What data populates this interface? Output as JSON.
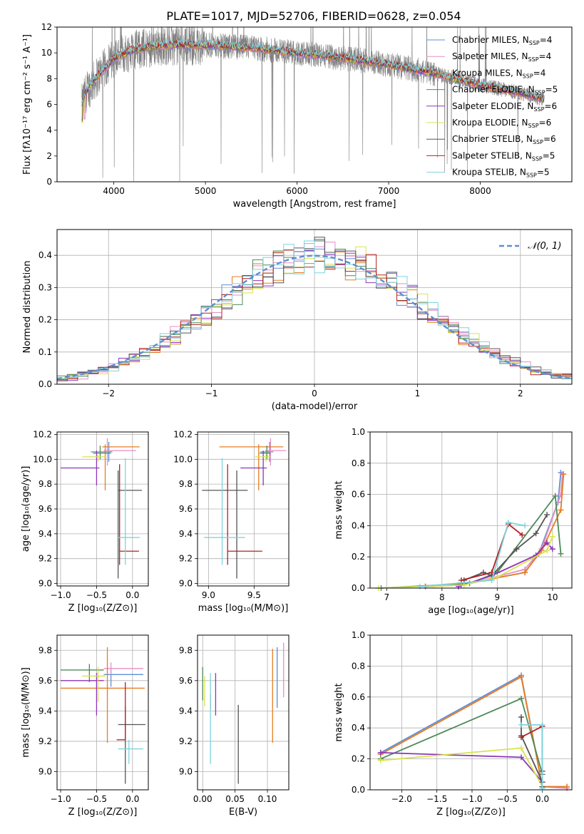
{
  "figure": {
    "title": "PLATE=1017, MJD=52706, FIBERID=0628, z=0.054"
  },
  "palette": {
    "Chabrier MILES": "#5f8fd6",
    "Salpeter MILES": "#e88ec3",
    "Kroupa MILES": "#e67e22",
    "Chabrier ELODIE": "#4e8a5a",
    "Salpeter ELODIE": "#8e35b8",
    "Kroupa ELODIE": "#d7e34a",
    "Chabrier STELIB": "#555555",
    "Salpeter STELIB": "#b22222",
    "Kroupa STELIB": "#7fd3dc",
    "data": "#7f7f7f",
    "normal": "#5b8fd6"
  },
  "chart_data": [
    {
      "id": "spectrum",
      "type": "line",
      "xlabel": "wavelength [Angstrom, rest frame]",
      "ylabel": "Flux [fλ10⁻¹⁷ erg cm⁻² s⁻¹ A⁻¹]",
      "xlim": [
        3380,
        9000
      ],
      "ylim": [
        0,
        12
      ],
      "grid": false,
      "legend": "top-right",
      "xticks": [
        4000,
        5000,
        6000,
        7000,
        8000
      ],
      "yticks": [
        0,
        2,
        4,
        6,
        8,
        10,
        12
      ],
      "continuum": {
        "x": [
          3650,
          3700,
          3800,
          4000,
          4200,
          4500,
          5000,
          5500,
          6000,
          6500,
          7000,
          7500,
          8000,
          8500,
          8700
        ],
        "y": [
          6.0,
          7.0,
          8.0,
          9.6,
          10.2,
          10.6,
          10.6,
          10.4,
          10.0,
          9.6,
          9.1,
          8.4,
          7.5,
          6.8,
          6.4
        ]
      },
      "series": [
        {
          "name": "Chabrier MILES, N",
          "sub": "SSP",
          "suffix": "=4"
        },
        {
          "name": "Salpeter MILES, N",
          "sub": "SSP",
          "suffix": "=4"
        },
        {
          "name": "Kroupa MILES, N",
          "sub": "SSP",
          "suffix": "=4"
        },
        {
          "name": "Chabrier ELODIE, N",
          "sub": "SSP",
          "suffix": "=5"
        },
        {
          "name": "Salpeter ELODIE, N",
          "sub": "SSP",
          "suffix": "=6"
        },
        {
          "name": "Kroupa ELODIE, N",
          "sub": "SSP",
          "suffix": "=6"
        },
        {
          "name": "Chabrier STELIB, N",
          "sub": "SSP",
          "suffix": "=6"
        },
        {
          "name": "Salpeter STELIB, N",
          "sub": "SSP",
          "suffix": "=5"
        },
        {
          "name": "Kroupa STELIB, N",
          "sub": "SSP",
          "suffix": "=5"
        }
      ]
    },
    {
      "id": "residuals",
      "type": "area",
      "xlabel": "(data-model)/error",
      "ylabel": "Normed distribution",
      "xlim": [
        -2.5,
        2.5
      ],
      "ylim": [
        0,
        0.48
      ],
      "grid": true,
      "legend": "top-right",
      "xticks": [
        -2,
        -1,
        0,
        1,
        2
      ],
      "yticks": [
        0.0,
        0.1,
        0.2,
        0.3,
        0.4
      ],
      "bins": {
        "start": -2.5,
        "width": 0.1,
        "count": 50
      },
      "normal_curve": {
        "label": "𝒩(0, 1)",
        "mean": 0,
        "sigma": 1
      }
    },
    {
      "id": "z-age",
      "type": "scatter",
      "xlabel": "Z [log₁₀(Z/Z⊙)]",
      "ylabel": "age  [log₁₀(age/yr)]",
      "xlim": [
        -1.05,
        0.22
      ],
      "ylim": [
        8.98,
        10.22
      ],
      "grid": true,
      "xticks": [
        -1.0,
        -0.5,
        0.0
      ],
      "yticks": [
        9.0,
        9.2,
        9.4,
        9.6,
        9.8,
        10.0,
        10.2
      ],
      "points": [
        {
          "x": -0.33,
          "y": 10.06,
          "xerr": [
            0.25,
            0.05
          ],
          "yerr": [
            0.08,
            0.08
          ]
        },
        {
          "x": -0.35,
          "y": 10.07,
          "xerr": [
            0.05,
            0.4
          ],
          "yerr": [
            0.12,
            0.1
          ]
        },
        {
          "x": -0.38,
          "y": 10.1,
          "xerr": [
            0.04,
            0.48
          ],
          "yerr": [
            0.35,
            0.02
          ]
        },
        {
          "x": -0.45,
          "y": 10.05,
          "xerr": [
            0.1,
            0.15
          ],
          "yerr": [
            0.05,
            0.06
          ]
        },
        {
          "x": -0.5,
          "y": 9.93,
          "xerr": [
            0.5,
            0.04
          ],
          "yerr": [
            0.14,
            0.14
          ]
        },
        {
          "x": -0.48,
          "y": 10.02,
          "xerr": [
            0.22,
            0.1
          ],
          "yerr": [
            0.04,
            0.02
          ]
        },
        {
          "x": -0.2,
          "y": 9.75,
          "xerr": [
            0.0,
            0.33
          ],
          "yerr": [
            0.71,
            0.16
          ]
        },
        {
          "x": -0.18,
          "y": 9.26,
          "xerr": [
            0.0,
            0.27
          ],
          "yerr": [
            0.11,
            0.7
          ]
        },
        {
          "x": -0.1,
          "y": 9.37,
          "xerr": [
            0.1,
            0.2
          ],
          "yerr": [
            0.22,
            0.64
          ]
        }
      ]
    },
    {
      "id": "mass-age",
      "type": "scatter",
      "xlabel": "mass [log₁₀(M/M⊙)]",
      "ylabel": "",
      "xlim": [
        8.88,
        9.88
      ],
      "ylim": [
        8.98,
        10.22
      ],
      "grid": true,
      "xticks": [
        9.0,
        9.5
      ],
      "yticks": [
        9.0,
        9.2,
        9.4,
        9.6,
        9.8,
        10.0,
        10.2
      ],
      "points": [
        {
          "x": 9.67,
          "y": 10.06,
          "xerr": [
            0.1,
            0.04
          ],
          "yerr": [
            0.08,
            0.08
          ]
        },
        {
          "x": 9.68,
          "y": 10.07,
          "xerr": [
            0.06,
            0.17
          ],
          "yerr": [
            0.12,
            0.1
          ]
        },
        {
          "x": 9.55,
          "y": 10.1,
          "xerr": [
            0.43,
            0.27
          ],
          "yerr": [
            0.35,
            0.02
          ]
        },
        {
          "x": 9.64,
          "y": 10.05,
          "xerr": [
            0.08,
            0.04
          ],
          "yerr": [
            0.05,
            0.06
          ]
        },
        {
          "x": 9.6,
          "y": 9.93,
          "xerr": [
            0.25,
            0.04
          ],
          "yerr": [
            0.14,
            0.14
          ]
        },
        {
          "x": 9.63,
          "y": 10.02,
          "xerr": [
            0.12,
            0.05
          ],
          "yerr": [
            0.04,
            0.02
          ]
        },
        {
          "x": 9.31,
          "y": 9.75,
          "xerr": [
            0.38,
            0.12
          ],
          "yerr": [
            0.71,
            0.16
          ]
        },
        {
          "x": 9.21,
          "y": 9.26,
          "xerr": [
            0.0,
            0.38
          ],
          "yerr": [
            0.11,
            0.7
          ]
        },
        {
          "x": 9.15,
          "y": 9.37,
          "xerr": [
            0.2,
            0.25
          ],
          "yerr": [
            0.22,
            0.64
          ]
        }
      ]
    },
    {
      "id": "age-weight",
      "type": "line",
      "xlabel": "age  [log₁₀(age/yr)]",
      "ylabel": "mass weight",
      "xlim": [
        6.7,
        10.35
      ],
      "ylim": [
        0,
        1
      ],
      "grid": true,
      "xticks": [
        7,
        8,
        9,
        10
      ],
      "yticks": [
        0.0,
        0.2,
        0.4,
        0.6,
        0.8,
        1.0
      ],
      "series": [
        {
          "x": [
            7.7,
            8.3,
            9.5,
            9.75,
            10.1,
            10.15
          ],
          "y": [
            0.01,
            0.02,
            0.1,
            0.22,
            0.55,
            0.74
          ]
        },
        {
          "x": [
            7.7,
            8.4,
            9.5,
            9.8,
            10.15,
            10.18
          ],
          "y": [
            0.01,
            0.02,
            0.12,
            0.25,
            0.6,
            0.73
          ]
        },
        {
          "x": [
            7.7,
            8.35,
            9.5,
            9.8,
            10.15,
            10.2
          ],
          "y": [
            0.01,
            0.02,
            0.1,
            0.24,
            0.5,
            0.73
          ]
        },
        {
          "x": [
            6.9,
            8.5,
            9.0,
            10.05,
            10.15
          ],
          "y": [
            0.0,
            0.03,
            0.1,
            0.59,
            0.22
          ]
        },
        {
          "x": [
            8.3,
            8.9,
            9.7,
            9.9,
            10.0
          ],
          "y": [
            0.01,
            0.08,
            0.21,
            0.29,
            0.25
          ]
        },
        {
          "x": [
            6.85,
            8.4,
            9.0,
            9.9,
            10.0
          ],
          "y": [
            0.0,
            0.02,
            0.07,
            0.24,
            0.33
          ]
        },
        {
          "x": [
            8.4,
            8.75,
            8.9,
            9.35,
            9.7,
            9.9
          ],
          "y": [
            0.05,
            0.1,
            0.08,
            0.25,
            0.35,
            0.47
          ]
        },
        {
          "x": [
            8.35,
            8.9,
            9.2,
            9.45
          ],
          "y": [
            0.05,
            0.1,
            0.41,
            0.34
          ]
        },
        {
          "x": [
            7.6,
            8.9,
            9.2,
            9.5
          ],
          "y": [
            0.01,
            0.05,
            0.42,
            0.4
          ]
        }
      ]
    },
    {
      "id": "z-mass",
      "type": "scatter",
      "xlabel": "Z [log₁₀(Z/Z⊙)]",
      "ylabel": "mass [log₁₀(M/M⊙)]",
      "xlim": [
        -1.05,
        0.22
      ],
      "ylim": [
        8.88,
        9.9
      ],
      "grid": true,
      "xticks": [
        -1.0,
        -0.5,
        0.0
      ],
      "yticks": [
        9.0,
        9.2,
        9.4,
        9.6,
        9.8
      ],
      "points": [
        {
          "x": -0.3,
          "y": 9.64,
          "xerr": [
            0.1,
            0.45
          ],
          "yerr": [
            0.08,
            0.04
          ]
        },
        {
          "x": -0.3,
          "y": 9.68,
          "xerr": [
            0.1,
            0.45
          ],
          "yerr": [
            0.04,
            0.04
          ]
        },
        {
          "x": -0.35,
          "y": 9.55,
          "xerr": [
            0.65,
            0.52
          ],
          "yerr": [
            0.36,
            0.27
          ]
        },
        {
          "x": -0.6,
          "y": 9.67,
          "xerr": [
            0.4,
            0.2
          ],
          "yerr": [
            0.08,
            0.04
          ]
        },
        {
          "x": -0.5,
          "y": 9.6,
          "xerr": [
            0.5,
            0.1
          ],
          "yerr": [
            0.23,
            0.05
          ]
        },
        {
          "x": -0.48,
          "y": 9.63,
          "xerr": [
            0.22,
            0.1
          ],
          "yerr": [
            0.17,
            0.06
          ]
        },
        {
          "x": -0.1,
          "y": 9.31,
          "xerr": [
            0.1,
            0.28
          ],
          "yerr": [
            0.39,
            0.12
          ]
        },
        {
          "x": -0.1,
          "y": 9.21,
          "xerr": [
            0.12,
            0.0
          ],
          "yerr": [
            0.0,
            0.38
          ]
        },
        {
          "x": -0.05,
          "y": 9.15,
          "xerr": [
            0.15,
            0.2
          ],
          "yerr": [
            0.1,
            0.06
          ]
        }
      ]
    },
    {
      "id": "ebv-mass",
      "type": "scatter",
      "xlabel": "E(B-V)",
      "ylabel": "",
      "xlim": [
        -0.008,
        0.133
      ],
      "ylim": [
        8.88,
        9.9
      ],
      "grid": true,
      "xticks": [
        0.0,
        0.05,
        0.1
      ],
      "yticks": [
        9.0,
        9.2,
        9.4,
        9.6,
        9.8
      ],
      "points": [
        {
          "x": 0.115,
          "y": 9.62,
          "xerr": [
            0,
            0
          ],
          "yerr": [
            0.2,
            0.2
          ]
        },
        {
          "x": 0.125,
          "y": 9.67,
          "xerr": [
            0,
            0
          ],
          "yerr": [
            0.18,
            0.18
          ]
        },
        {
          "x": 0.108,
          "y": 9.5,
          "xerr": [
            0,
            0
          ],
          "yerr": [
            0.31,
            0.31
          ]
        },
        {
          "x": 0.0,
          "y": 9.58,
          "xerr": [
            0,
            0
          ],
          "yerr": [
            0.11,
            0.11
          ]
        },
        {
          "x": 0.02,
          "y": 9.51,
          "xerr": [
            0,
            0
          ],
          "yerr": [
            0.14,
            0.14
          ]
        },
        {
          "x": 0.003,
          "y": 9.53,
          "xerr": [
            0,
            0
          ],
          "yerr": [
            0.1,
            0.1
          ]
        },
        {
          "x": 0.055,
          "y": 9.18,
          "xerr": [
            0,
            0
          ],
          "yerr": [
            0.26,
            0.26
          ]
        },
        {
          "x": 0.012,
          "y": 9.46,
          "xerr": [
            0,
            0
          ],
          "yerr": [
            0.05,
            0.05
          ]
        },
        {
          "x": 0.012,
          "y": 9.35,
          "xerr": [
            0,
            0
          ],
          "yerr": [
            0.3,
            0.3
          ]
        }
      ]
    },
    {
      "id": "z-weight",
      "type": "line",
      "xlabel": "Z [log₁₀(Z/Z⊙)]",
      "ylabel": "mass weight",
      "xlim": [
        -2.45,
        0.42
      ],
      "ylim": [
        0,
        1
      ],
      "grid": true,
      "xticks": [
        -2.0,
        -1.5,
        -1.0,
        -0.5,
        0.0
      ],
      "yticks": [
        0.0,
        0.2,
        0.4,
        0.6,
        0.8,
        1.0
      ],
      "series": [
        {
          "x": [
            -2.3,
            -0.3,
            0.0,
            0.35
          ],
          "y": [
            0.24,
            0.74,
            0.02,
            0.02
          ]
        },
        {
          "x": [
            -2.3,
            -0.3,
            0.0,
            0.35
          ],
          "y": [
            0.23,
            0.73,
            0.02,
            0.01
          ]
        },
        {
          "x": [
            -2.3,
            -0.3,
            0.0,
            0.35
          ],
          "y": [
            0.23,
            0.73,
            0.02,
            0.02
          ]
        },
        {
          "x": [
            -2.3,
            -0.3,
            0.0
          ],
          "y": [
            0.2,
            0.59,
            0.1
          ]
        },
        {
          "x": [
            -2.3,
            -0.3,
            0.0
          ],
          "y": [
            0.24,
            0.21,
            0.05
          ]
        },
        {
          "x": [
            -2.3,
            -0.3,
            0.0
          ],
          "y": [
            0.19,
            0.27,
            0.02
          ]
        },
        {
          "x": [
            -0.3,
            -0.3,
            0.0,
            0.0
          ],
          "y": [
            0.47,
            0.35,
            0.05,
            0.02
          ]
        },
        {
          "x": [
            -0.3,
            0.0,
            0.0
          ],
          "y": [
            0.34,
            0.41,
            0.12
          ]
        },
        {
          "x": [
            -0.3,
            0.0,
            0.0
          ],
          "y": [
            0.42,
            0.42,
            0.01
          ]
        }
      ]
    }
  ]
}
